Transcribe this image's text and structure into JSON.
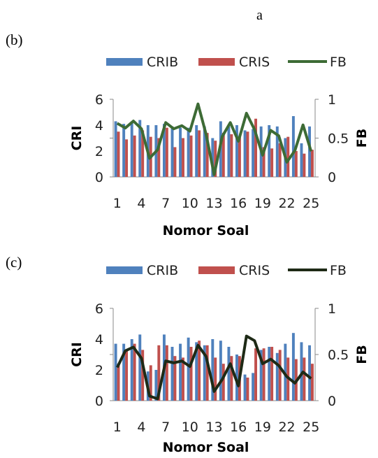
{
  "header_text": "a",
  "chart_data": [
    {
      "panel_label": "(b)",
      "type": "bar",
      "x_categories": [
        "1",
        "2",
        "3",
        "4",
        "5",
        "6",
        "7",
        "8",
        "9",
        "10",
        "11",
        "12",
        "13",
        "14",
        "15",
        "16",
        "17",
        "18",
        "19",
        "20",
        "21",
        "22",
        "23",
        "24",
        "25"
      ],
      "x_tick_labels": [
        "1",
        "4",
        "7",
        "10",
        "13",
        "16",
        "19",
        "22",
        "25"
      ],
      "xlabel": "Nomor Soal",
      "ylabel_left": "CRI",
      "ylabel_right": "FB",
      "ylim_left": [
        0,
        6
      ],
      "yticks_left": [
        "0",
        "2",
        "4",
        "6"
      ],
      "ylim_right": [
        0,
        1
      ],
      "yticks_right": [
        "0",
        "0.5",
        "1"
      ],
      "legend_position": "top",
      "grid": false,
      "series": [
        {
          "name": "CRIB",
          "kind": "bar",
          "axis": "left",
          "color": "#4f81bd",
          "values": [
            4.3,
            4.1,
            4.2,
            4.4,
            4.0,
            4.0,
            4.1,
            3.9,
            3.8,
            3.8,
            4.0,
            3.9,
            3.0,
            4.3,
            3.9,
            4.0,
            3.6,
            3.7,
            3.9,
            4.0,
            3.9,
            3.0,
            4.7,
            2.6,
            3.9
          ]
        },
        {
          "name": "CRIS",
          "kind": "bar",
          "axis": "left",
          "color": "#c0504d",
          "values": [
            3.5,
            2.9,
            3.2,
            3.6,
            3.1,
            3.0,
            3.8,
            2.3,
            3.0,
            3.2,
            3.6,
            3.4,
            2.8,
            3.4,
            3.3,
            3.1,
            3.5,
            4.5,
            2.3,
            2.2,
            2.6,
            3.1,
            2.0,
            1.8,
            2.1
          ]
        },
        {
          "name": "FB",
          "kind": "line",
          "axis": "right",
          "color": "#3d6b35",
          "values": [
            0.69,
            0.63,
            0.72,
            0.62,
            0.24,
            0.35,
            0.7,
            0.62,
            0.66,
            0.59,
            0.94,
            0.55,
            0.03,
            0.52,
            0.7,
            0.46,
            0.82,
            0.61,
            0.28,
            0.6,
            0.53,
            0.19,
            0.34,
            0.67,
            0.33
          ]
        }
      ]
    },
    {
      "panel_label": "(c)",
      "type": "bar",
      "x_categories": [
        "1",
        "2",
        "3",
        "4",
        "5",
        "6",
        "7",
        "8",
        "9",
        "10",
        "11",
        "12",
        "13",
        "14",
        "15",
        "16",
        "17",
        "18",
        "19",
        "20",
        "21",
        "22",
        "23",
        "24",
        "25"
      ],
      "x_tick_labels": [
        "1",
        "4",
        "7",
        "10",
        "13",
        "16",
        "19",
        "22",
        "25"
      ],
      "xlabel": "Nomor Soal",
      "ylabel_left": "CRI",
      "ylabel_right": "FB",
      "ylim_left": [
        0,
        6
      ],
      "yticks_left": [
        "0",
        "2",
        "4",
        "6"
      ],
      "ylim_right": [
        0,
        1
      ],
      "yticks_right": [
        "0",
        "0.5",
        "1"
      ],
      "legend_position": "top",
      "grid": false,
      "series": [
        {
          "name": "CRIB",
          "kind": "bar",
          "axis": "left",
          "color": "#4f81bd",
          "values": [
            3.7,
            3.7,
            4.0,
            4.3,
            1.9,
            2.0,
            4.3,
            3.5,
            3.7,
            4.1,
            3.8,
            3.6,
            4.0,
            3.9,
            3.5,
            3.0,
            1.7,
            1.8,
            3.3,
            3.5,
            3.1,
            3.7,
            4.4,
            3.8,
            3.6
          ]
        },
        {
          "name": "CRIS",
          "kind": "bar",
          "axis": "left",
          "color": "#c0504d",
          "values": [
            2.4,
            3.3,
            3.7,
            3.3,
            2.3,
            3.6,
            3.6,
            2.9,
            2.8,
            3.5,
            3.9,
            3.6,
            2.8,
            2.4,
            2.9,
            2.9,
            1.5,
            3.4,
            3.4,
            3.5,
            3.3,
            2.8,
            2.7,
            2.8,
            2.4
          ]
        },
        {
          "name": "FB",
          "kind": "line",
          "axis": "right",
          "color": "#1e2a16",
          "values": [
            0.36,
            0.54,
            0.58,
            0.46,
            0.05,
            0.02,
            0.43,
            0.41,
            0.43,
            0.37,
            0.6,
            0.48,
            0.1,
            0.23,
            0.4,
            0.16,
            0.7,
            0.65,
            0.4,
            0.45,
            0.38,
            0.26,
            0.19,
            0.31,
            0.24
          ]
        }
      ]
    }
  ]
}
